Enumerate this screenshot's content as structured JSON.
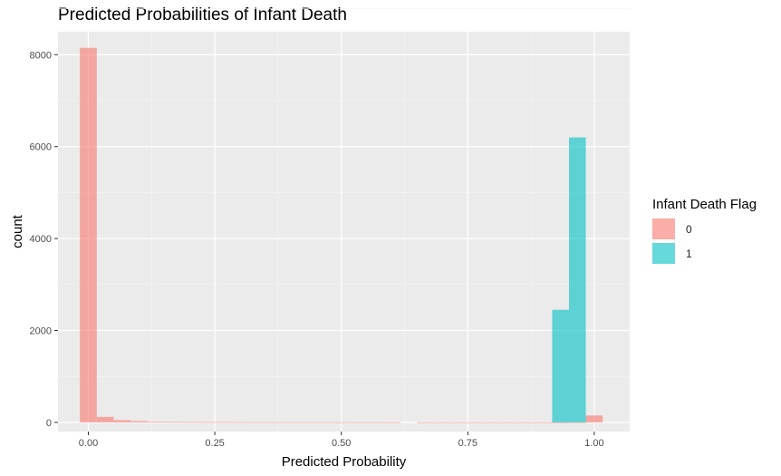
{
  "chart_data": {
    "type": "histogram",
    "title": "Predicted Probabilities of Infant Death",
    "xlabel": "Predicted Probability",
    "ylabel": "count",
    "xlim": [
      -0.06,
      1.07
    ],
    "ylim": [
      -200,
      8500
    ],
    "x_ticks": [
      0,
      0.25,
      0.5,
      0.75,
      1
    ],
    "x_tick_labels": [
      "0.00",
      "0.25",
      "0.50",
      "0.75",
      "1.00"
    ],
    "y_ticks": [
      0,
      2000,
      4000,
      6000,
      8000
    ],
    "y_tick_labels": [
      "0",
      "2000",
      "4000",
      "6000",
      "8000"
    ],
    "grid": true,
    "legend": {
      "title": "Infant Death Flag",
      "position": "right"
    },
    "series": [
      {
        "name": "0",
        "color": "#F8766D",
        "bins": [
          {
            "x0": -0.0167,
            "x1": 0.0167,
            "count": 8150
          },
          {
            "x0": 0.0167,
            "x1": 0.05,
            "count": 120
          },
          {
            "x0": 0.05,
            "x1": 0.0833,
            "count": 50
          },
          {
            "x0": 0.0833,
            "x1": 0.1167,
            "count": 30
          },
          {
            "x0": 0.1167,
            "x1": 0.15,
            "count": 15
          },
          {
            "x0": 0.15,
            "x1": 0.1833,
            "count": 12
          },
          {
            "x0": 0.1833,
            "x1": 0.2167,
            "count": 10
          },
          {
            "x0": 0.2167,
            "x1": 0.25,
            "count": 8
          },
          {
            "x0": 0.25,
            "x1": 0.2833,
            "count": 8
          },
          {
            "x0": 0.2833,
            "x1": 0.3167,
            "count": 7
          },
          {
            "x0": 0.3167,
            "x1": 0.35,
            "count": 6
          },
          {
            "x0": 0.35,
            "x1": 0.3833,
            "count": 6
          },
          {
            "x0": 0.3833,
            "x1": 0.4167,
            "count": 5
          },
          {
            "x0": 0.4167,
            "x1": 0.45,
            "count": 5
          },
          {
            "x0": 0.45,
            "x1": 0.4833,
            "count": 5
          },
          {
            "x0": 0.4833,
            "x1": 0.5167,
            "count": 5
          },
          {
            "x0": 0.5167,
            "x1": 0.55,
            "count": 4
          },
          {
            "x0": 0.55,
            "x1": 0.5833,
            "count": 4
          },
          {
            "x0": 0.5833,
            "x1": 0.6167,
            "count": 3
          },
          {
            "x0": 0.65,
            "x1": 0.6833,
            "count": 3
          },
          {
            "x0": 0.6833,
            "x1": 0.7167,
            "count": 3
          },
          {
            "x0": 0.7167,
            "x1": 0.75,
            "count": 3
          },
          {
            "x0": 0.75,
            "x1": 0.7833,
            "count": 3
          },
          {
            "x0": 0.7833,
            "x1": 0.8167,
            "count": 3
          },
          {
            "x0": 0.8167,
            "x1": 0.85,
            "count": 3
          },
          {
            "x0": 0.85,
            "x1": 0.8833,
            "count": 3
          },
          {
            "x0": 0.8833,
            "x1": 0.9167,
            "count": 3
          },
          {
            "x0": 0.9167,
            "x1": 0.95,
            "count": 3
          },
          {
            "x0": 0.95,
            "x1": 0.9833,
            "count": 5
          },
          {
            "x0": 0.9833,
            "x1": 1.0167,
            "count": 150
          }
        ]
      },
      {
        "name": "1",
        "color": "#00BFC4",
        "bins": [
          {
            "x0": 0.9167,
            "x1": 0.95,
            "count": 2450
          },
          {
            "x0": 0.95,
            "x1": 0.9833,
            "count": 6200
          }
        ]
      }
    ]
  }
}
